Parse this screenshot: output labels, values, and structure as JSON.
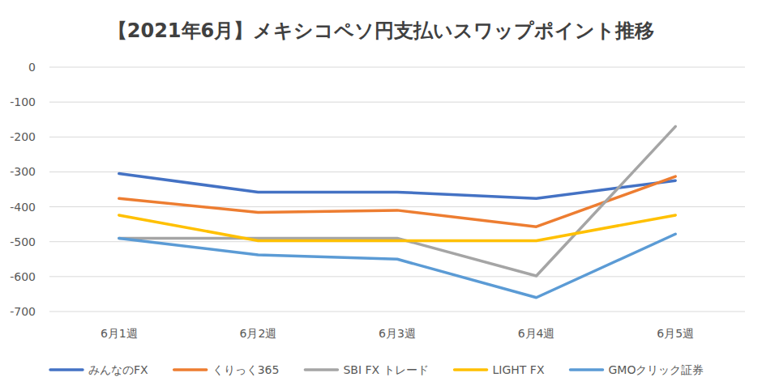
{
  "chart_data": {
    "type": "line",
    "title": "【2021年6月】メキシコペソ円支払いスワップポイント推移",
    "categories": [
      "6月1週",
      "6月2週",
      "6月3週",
      "6月4週",
      "6月5週"
    ],
    "series": [
      {
        "name": "みんなのFX",
        "color": "#4472c4",
        "values": [
          -305,
          -358,
          -358,
          -376,
          -325
        ]
      },
      {
        "name": "くりっく365",
        "color": "#ed7d31",
        "values": [
          -376,
          -416,
          -410,
          -457,
          -313
        ]
      },
      {
        "name": "SBI FX トレード",
        "color": "#a5a5a5",
        "values": [
          -490,
          -490,
          -490,
          -598,
          -170
        ]
      },
      {
        "name": "LIGHT FX",
        "color": "#ffc000",
        "values": [
          -424,
          -497,
          -497,
          -497,
          -424
        ]
      },
      {
        "name": "GMOクリック証券",
        "color": "#5b9bd5",
        "values": [
          -490,
          -538,
          -550,
          -660,
          -478
        ]
      }
    ],
    "ylim": [
      -700,
      0
    ],
    "yticks": [
      0,
      -100,
      -200,
      -300,
      -400,
      -500,
      -600,
      -700
    ],
    "grid": true,
    "legend": "bottom"
  }
}
